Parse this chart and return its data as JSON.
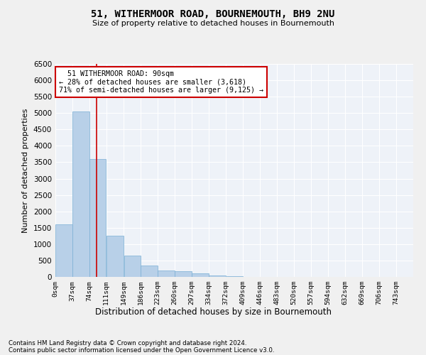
{
  "title": "51, WITHERMOOR ROAD, BOURNEMOUTH, BH9 2NU",
  "subtitle": "Size of property relative to detached houses in Bournemouth",
  "xlabel": "Distribution of detached houses by size in Bournemouth",
  "ylabel": "Number of detached properties",
  "bin_edges": [
    0,
    37,
    74,
    111,
    149,
    186,
    223,
    260,
    297,
    334,
    372,
    409,
    446,
    483,
    520,
    557,
    594,
    632,
    669,
    706,
    743
  ],
  "bar_heights": [
    1600,
    5050,
    3600,
    1250,
    650,
    350,
    200,
    180,
    100,
    50,
    20,
    5,
    0,
    0,
    0,
    0,
    0,
    0,
    0,
    0
  ],
  "bar_color": "#b8d0e8",
  "bar_edgecolor": "#7aafd4",
  "property_size": 90,
  "vline_color": "#cc0000",
  "annotation_text": "  51 WITHERMOOR ROAD: 90sqm  \n← 28% of detached houses are smaller (3,618)\n71% of semi-detached houses are larger (9,125) →",
  "annotation_box_color": "#cc0000",
  "background_color": "#eef2f8",
  "grid_color": "#ffffff",
  "fig_background": "#f0f0f0",
  "ylim": [
    0,
    6500
  ],
  "yticks": [
    0,
    500,
    1000,
    1500,
    2000,
    2500,
    3000,
    3500,
    4000,
    4500,
    5000,
    5500,
    6000,
    6500
  ],
  "footer_line1": "Contains HM Land Registry data © Crown copyright and database right 2024.",
  "footer_line2": "Contains public sector information licensed under the Open Government Licence v3.0."
}
